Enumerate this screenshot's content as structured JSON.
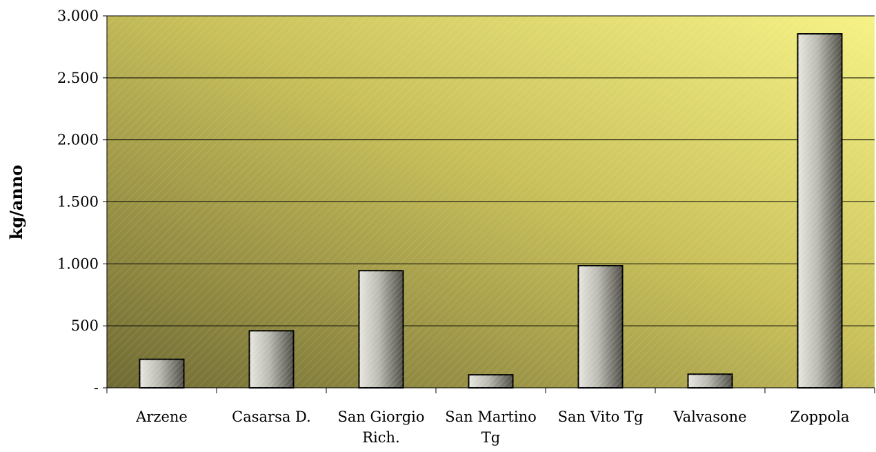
{
  "chart_data": {
    "type": "bar",
    "title": "",
    "xlabel": "",
    "ylabel": "kg/anno",
    "ylim": [
      0,
      3000
    ],
    "yticks": [
      {
        "value": 0,
        "label": "-"
      },
      {
        "value": 500,
        "label": "500"
      },
      {
        "value": 1000,
        "label": "1.000"
      },
      {
        "value": 1500,
        "label": "1.500"
      },
      {
        "value": 2000,
        "label": "2.000"
      },
      {
        "value": 2500,
        "label": "2.500"
      },
      {
        "value": 3000,
        "label": "3.000"
      }
    ],
    "categories": [
      [
        "Arzene"
      ],
      [
        "Casarsa D."
      ],
      [
        "San Giorgio",
        "Rich."
      ],
      [
        "San Martino",
        "Tg"
      ],
      [
        "San Vito Tg"
      ],
      [
        "Valvasone"
      ],
      [
        "Zoppola"
      ]
    ],
    "values": [
      230,
      460,
      945,
      105,
      985,
      110,
      2855
    ],
    "grid": true,
    "legend": "none",
    "colors": {
      "plot_bg_light": "#f3f07e",
      "plot_bg_dark": "#6f6a33",
      "bar_light": "#e6e6df",
      "bar_dark": "#4f4f47",
      "bar_border": "#000000",
      "grid": "#000000"
    }
  }
}
